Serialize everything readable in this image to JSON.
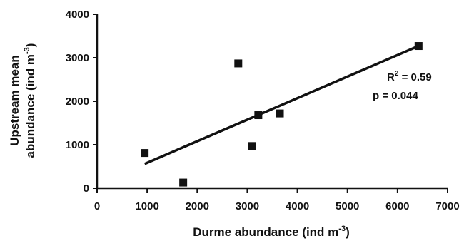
{
  "chart_data": {
    "type": "scatter",
    "xlabel": {
      "main": "Durme abundance (ind m",
      "sup": "-3",
      "close": ")"
    },
    "ylabel": {
      "line1": "Upstream mean",
      "line2_main": "abundance (ind m",
      "line2_sup": "-3",
      "line2_close": ")"
    },
    "xlim": [
      0,
      7000
    ],
    "ylim": [
      0,
      4000
    ],
    "xticks": [
      "0",
      "1000",
      "2000",
      "3000",
      "4000",
      "5000",
      "6000",
      "7000"
    ],
    "yticks": [
      "0",
      "1000",
      "2000",
      "3000",
      "4000"
    ],
    "points": [
      {
        "x": 950,
        "y": 810
      },
      {
        "x": 1720,
        "y": 130
      },
      {
        "x": 2820,
        "y": 2870
      },
      {
        "x": 3100,
        "y": 970
      },
      {
        "x": 3220,
        "y": 1680
      },
      {
        "x": 3650,
        "y": 1720
      },
      {
        "x": 6420,
        "y": 3270
      }
    ],
    "trendline": {
      "x": [
        950,
        6420
      ],
      "y": [
        560,
        3270
      ]
    },
    "annotations": {
      "r2_prefix": "R",
      "r2_sup": "2",
      "r2_value": " = 0.59",
      "p_text": "p = 0.044"
    },
    "grid": false,
    "legend": "none",
    "marker": "square",
    "color": "#111111"
  }
}
